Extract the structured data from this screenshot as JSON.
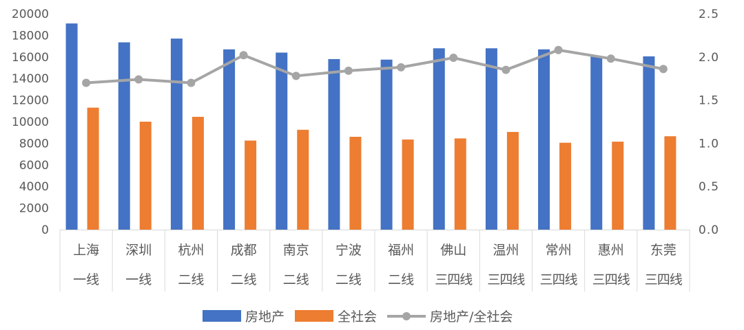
{
  "chart_data": {
    "type": "bar",
    "categories": [
      {
        "city": "上海",
        "tier": "一线"
      },
      {
        "city": "深圳",
        "tier": "一线"
      },
      {
        "city": "杭州",
        "tier": "二线"
      },
      {
        "city": "成都",
        "tier": "二线"
      },
      {
        "city": "南京",
        "tier": "二线"
      },
      {
        "city": "宁波",
        "tier": "二线"
      },
      {
        "city": "福州",
        "tier": "二线"
      },
      {
        "city": "佛山",
        "tier": "三四线"
      },
      {
        "city": "温州",
        "tier": "三四线"
      },
      {
        "city": "常州",
        "tier": "三四线"
      },
      {
        "city": "惠州",
        "tier": "三四线"
      },
      {
        "city": "东莞",
        "tier": "三四线"
      }
    ],
    "series": [
      {
        "name": "房地产",
        "type": "bar",
        "axis": "left",
        "color": "#4472C4",
        "values": [
          19100,
          17350,
          17700,
          16700,
          16400,
          15800,
          15750,
          16800,
          16800,
          16700,
          16050,
          16050
        ]
      },
      {
        "name": "全社会",
        "type": "bar",
        "axis": "left",
        "color": "#ED7D31",
        "values": [
          11300,
          10000,
          10450,
          8250,
          9250,
          8600,
          8350,
          8450,
          9050,
          8050,
          8150,
          8650
        ]
      },
      {
        "name": "房地产/全社会",
        "type": "line",
        "axis": "right",
        "color": "#A5A5A5",
        "values": [
          1.7,
          1.74,
          1.7,
          2.02,
          1.78,
          1.84,
          1.88,
          1.99,
          1.85,
          2.08,
          1.98,
          1.86
        ]
      }
    ],
    "title": "",
    "y_left": {
      "min": 0,
      "max": 20000,
      "ticks": [
        "0",
        "2000",
        "4000",
        "6000",
        "8000",
        "10000",
        "12000",
        "14000",
        "16000",
        "18000",
        "20000"
      ]
    },
    "y_right": {
      "min": 0,
      "max": 2.5,
      "ticks": [
        "0.0",
        "0.5",
        "1.0",
        "1.5",
        "2.0",
        "2.5"
      ]
    },
    "grid": false,
    "legend_position": "bottom"
  }
}
